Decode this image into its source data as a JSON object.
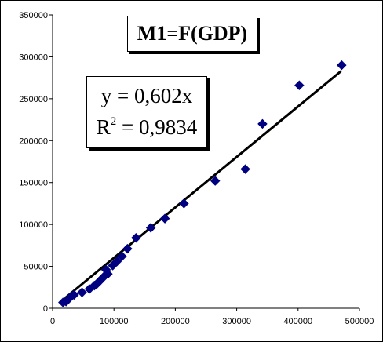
{
  "chart_data": {
    "type": "scatter",
    "title": "M1=F(GDP)",
    "xlabel": "",
    "ylabel": "",
    "xlim": [
      0,
      500000
    ],
    "ylim": [
      0,
      350000
    ],
    "x_ticks": [
      "0",
      "100000",
      "200000",
      "300000",
      "400000",
      "500000"
    ],
    "y_ticks": [
      "0",
      "50000",
      "100000",
      "150000",
      "200000",
      "250000",
      "300000",
      "350000"
    ],
    "grid": false,
    "marker": "diamond",
    "marker_color": "#000080",
    "trendline": {
      "slope": 0.602,
      "intercept": 0,
      "x_range": [
        20000,
        470000
      ],
      "color": "#000000"
    },
    "equation": {
      "eq_text": "y = 0,602x",
      "r2_prefix": "R",
      "r2_sup": "2",
      "r2_value": " = 0,9834"
    },
    "x": [
      17000,
      22000,
      26000,
      30000,
      35000,
      48000,
      60000,
      68000,
      72000,
      76000,
      80000,
      84000,
      87000,
      90000,
      98000,
      105000,
      113000,
      122000,
      136000,
      160000,
      183000,
      214000,
      265000,
      314000,
      342000,
      402000,
      471000
    ],
    "y": [
      7000,
      8000,
      11000,
      14000,
      16000,
      19000,
      23000,
      27000,
      29000,
      32000,
      35000,
      38000,
      46000,
      41000,
      51000,
      56000,
      62000,
      71000,
      84000,
      96000,
      107000,
      125000,
      152000,
      166000,
      220000,
      266000,
      290000
    ]
  }
}
